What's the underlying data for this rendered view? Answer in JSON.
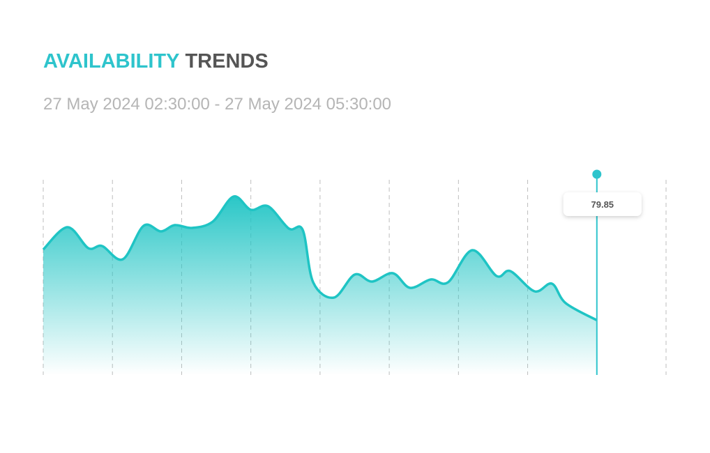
{
  "chart_data": {
    "type": "area",
    "title_highlight": "AVAILABILITY",
    "title": "TRENDS",
    "subtitle": "27 May 2024 02:30:00 - 27 May 2024 05:30:00",
    "color": "#1fc4c4",
    "highlight_color": "#2ec4cc",
    "x": [
      0,
      7,
      13,
      17,
      23,
      29,
      34,
      38,
      43,
      49,
      55,
      60,
      65,
      71,
      75,
      78,
      84,
      90,
      95,
      101,
      106,
      112,
      117,
      124,
      131,
      135,
      142,
      147,
      151,
      160
    ],
    "values": [
      90.0,
      93.2,
      90.2,
      90.5,
      88.6,
      93.4,
      92.6,
      93.5,
      93.1,
      94.0,
      97.6,
      95.7,
      96.2,
      93.0,
      92.8,
      85.3,
      83.1,
      86.4,
      85.4,
      86.6,
      84.5,
      85.7,
      85.3,
      89.9,
      86.2,
      86.9,
      84.0,
      85.1,
      82.3,
      79.85
    ],
    "xlim": [
      0,
      180
    ],
    "xticks": [
      0,
      20,
      40,
      60,
      80,
      100,
      120,
      140,
      160,
      180
    ],
    "ylim": [
      72,
      100
    ],
    "grid": true,
    "tooltip_index": 29
  }
}
